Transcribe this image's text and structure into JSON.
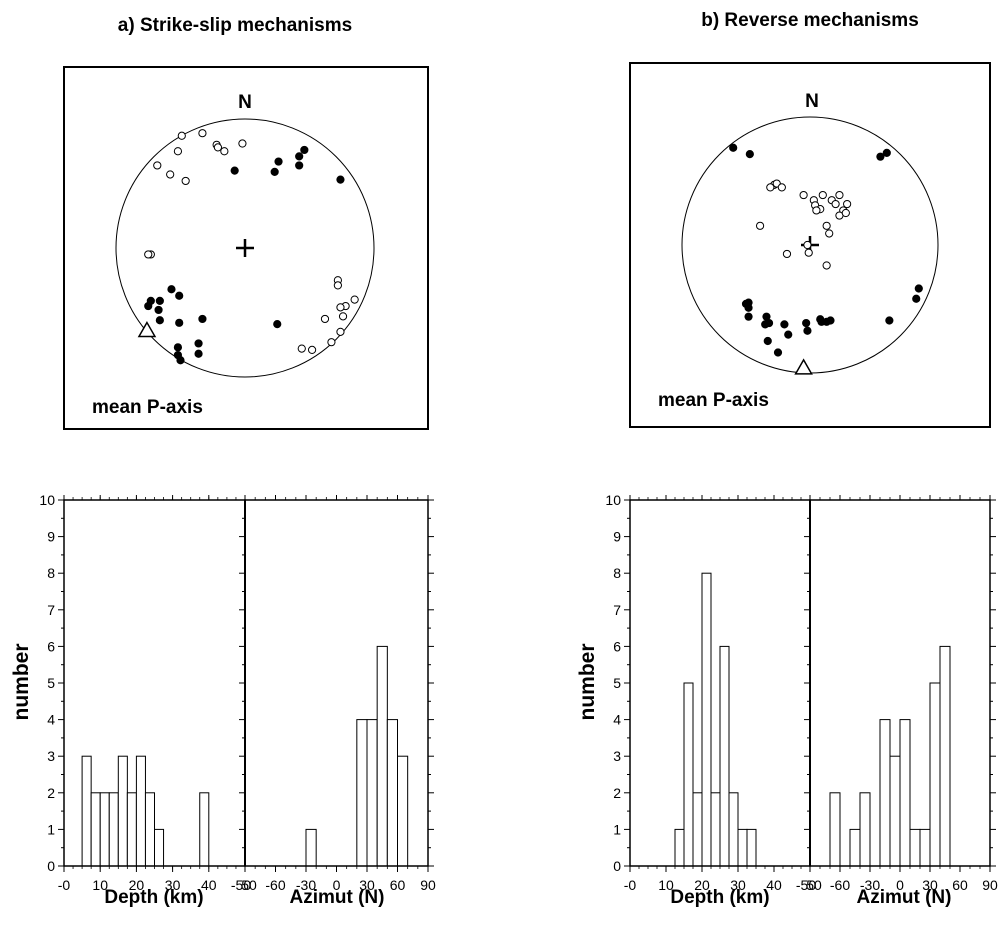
{
  "chart_data": [
    {
      "type": "scatter",
      "panel": "a",
      "title": "a) Strike-slip mechanisms",
      "north_label": "N",
      "mean_label": "mean P-axis",
      "projection": "stereonet",
      "series": [
        {
          "name": "",
          "symbol": "open-circle",
          "points": [
            [
              -0.49,
              0.87
            ],
            [
              -0.33,
              0.89
            ],
            [
              -0.22,
              0.8
            ],
            [
              -0.16,
              0.75
            ],
            [
              -0.21,
              0.78
            ],
            [
              -0.02,
              0.81
            ],
            [
              -0.52,
              0.75
            ],
            [
              -0.68,
              0.64
            ],
            [
              -0.58,
              0.57
            ],
            [
              -0.46,
              0.52
            ],
            [
              -0.73,
              -0.05
            ],
            [
              -0.75,
              -0.05
            ],
            [
              0.72,
              -0.25
            ],
            [
              0.72,
              -0.29
            ],
            [
              0.85,
              -0.4
            ],
            [
              0.78,
              -0.45
            ],
            [
              0.74,
              -0.46
            ],
            [
              0.62,
              -0.55
            ],
            [
              0.76,
              -0.53
            ],
            [
              0.74,
              -0.65
            ],
            [
              0.67,
              -0.73
            ],
            [
              0.52,
              -0.79
            ],
            [
              0.44,
              -0.78
            ]
          ]
        },
        {
          "name": "",
          "symbol": "filled-circle",
          "points": [
            [
              0.46,
              0.76
            ],
            [
              0.42,
              0.71
            ],
            [
              0.42,
              0.64
            ],
            [
              0.26,
              0.67
            ],
            [
              0.74,
              0.53
            ],
            [
              0.23,
              0.59
            ],
            [
              -0.08,
              0.6
            ],
            [
              -0.66,
              -0.41
            ],
            [
              -0.67,
              -0.48
            ],
            [
              -0.73,
              -0.41
            ],
            [
              -0.57,
              -0.32
            ],
            [
              -0.66,
              -0.56
            ],
            [
              -0.75,
              -0.45
            ],
            [
              -0.51,
              -0.37
            ],
            [
              -0.51,
              -0.58
            ],
            [
              -0.33,
              -0.55
            ],
            [
              -0.52,
              -0.77
            ],
            [
              -0.36,
              -0.74
            ],
            [
              -0.36,
              -0.82
            ],
            [
              -0.52,
              -0.83
            ],
            [
              -0.5,
              -0.87
            ],
            [
              0.25,
              -0.59
            ]
          ]
        }
      ],
      "mean_p_axis": [
        -0.76,
        -0.64
      ]
    },
    {
      "type": "scatter",
      "panel": "b",
      "title": "b) Reverse mechanisms",
      "north_label": "N",
      "mean_label": "mean P-axis",
      "projection": "stereonet",
      "series": [
        {
          "name": "",
          "symbol": "open-circle",
          "points": [
            [
              -0.28,
              0.47
            ],
            [
              -0.26,
              0.48
            ],
            [
              -0.22,
              0.45
            ],
            [
              -0.31,
              0.45
            ],
            [
              -0.05,
              0.39
            ],
            [
              0.1,
              0.39
            ],
            [
              0.03,
              0.35
            ],
            [
              0.04,
              0.31
            ],
            [
              0.17,
              0.35
            ],
            [
              0.23,
              0.39
            ],
            [
              0.2,
              0.32
            ],
            [
              0.29,
              0.32
            ],
            [
              0.26,
              0.27
            ],
            [
              0.08,
              0.28
            ],
            [
              0.05,
              0.27
            ],
            [
              0.23,
              0.23
            ],
            [
              0.28,
              0.25
            ],
            [
              0.13,
              0.15
            ],
            [
              0.15,
              0.09
            ],
            [
              -0.39,
              0.15
            ],
            [
              -0.01,
              -0.06
            ],
            [
              -0.18,
              -0.07
            ],
            [
              0.13,
              -0.16
            ],
            [
              -0.02,
              0.0
            ]
          ]
        },
        {
          "name": "",
          "symbol": "filled-circle",
          "points": [
            [
              -0.6,
              0.76
            ],
            [
              -0.47,
              0.71
            ],
            [
              0.55,
              0.69
            ],
            [
              0.6,
              0.72
            ],
            [
              -0.48,
              -0.45
            ],
            [
              -0.5,
              -0.46
            ],
            [
              -0.48,
              -0.49
            ],
            [
              -0.35,
              -0.62
            ],
            [
              -0.32,
              -0.61
            ],
            [
              -0.48,
              -0.56
            ],
            [
              -0.34,
              -0.56
            ],
            [
              -0.2,
              -0.62
            ],
            [
              -0.03,
              -0.61
            ],
            [
              0.08,
              -0.58
            ],
            [
              0.09,
              -0.6
            ],
            [
              0.13,
              -0.6
            ],
            [
              0.16,
              -0.59
            ],
            [
              0.62,
              -0.59
            ],
            [
              0.83,
              -0.42
            ],
            [
              0.85,
              -0.34
            ],
            [
              -0.25,
              -0.84
            ],
            [
              -0.33,
              -0.75
            ],
            [
              -0.17,
              -0.7
            ],
            [
              -0.02,
              -0.67
            ]
          ]
        }
      ],
      "mean_p_axis": [
        -0.05,
        -0.96
      ]
    },
    {
      "type": "bar",
      "panel": "a",
      "ylabel": "number",
      "ylim": [
        0,
        10
      ],
      "yticks": [
        "0",
        "1",
        "2",
        "3",
        "4",
        "5",
        "6",
        "7",
        "8",
        "9",
        "10"
      ],
      "depth": {
        "xlabel": "Depth (km)",
        "xlim": [
          0,
          50
        ],
        "xticks": [
          "-0",
          "10",
          "20",
          "30",
          "40",
          "50"
        ],
        "bin_width": 2.5,
        "bins": [
          [
            5,
            3
          ],
          [
            7.5,
            2
          ],
          [
            10,
            2
          ],
          [
            12.5,
            2
          ],
          [
            15,
            3
          ],
          [
            17.5,
            2
          ],
          [
            20,
            3
          ],
          [
            22.5,
            2
          ],
          [
            25,
            1
          ],
          [
            37.5,
            2
          ]
        ]
      },
      "azimuth": {
        "xlabel": "Azimut (N)",
        "xlim": [
          -90,
          90
        ],
        "xticks": [
          "-90",
          "-60",
          "-30",
          "0",
          "30",
          "60",
          "90"
        ],
        "tick_labels_printed": [
          "50",
          "-60",
          "-30",
          "0",
          "30",
          "60",
          "90"
        ],
        "bin_width": 10,
        "bins": [
          [
            -30,
            1
          ],
          [
            20,
            4
          ],
          [
            30,
            4
          ],
          [
            40,
            6
          ],
          [
            50,
            4
          ],
          [
            60,
            3
          ]
        ]
      }
    },
    {
      "type": "bar",
      "panel": "b",
      "ylabel": "number",
      "ylim": [
        0,
        10
      ],
      "yticks": [
        "0",
        "1",
        "2",
        "3",
        "4",
        "5",
        "6",
        "7",
        "8",
        "9",
        "10"
      ],
      "depth": {
        "xlabel": "Depth (km)",
        "xlim": [
          0,
          50
        ],
        "xticks": [
          "-0",
          "10",
          "20",
          "30",
          "40",
          "50"
        ],
        "bin_width": 2.5,
        "bins": [
          [
            12.5,
            1
          ],
          [
            15,
            5
          ],
          [
            17.5,
            2
          ],
          [
            20,
            8
          ],
          [
            22.5,
            2
          ],
          [
            25,
            6
          ],
          [
            27.5,
            2
          ],
          [
            30,
            1
          ],
          [
            32.5,
            1
          ]
        ]
      },
      "azimuth": {
        "xlabel": "Azimut (N)",
        "xlim": [
          -90,
          90
        ],
        "xticks": [
          "-90",
          "-60",
          "-30",
          "0",
          "30",
          "60",
          "90"
        ],
        "tick_labels_printed": [
          "50",
          "-60",
          "-30",
          "0",
          "30",
          "60",
          "90"
        ],
        "bin_width": 10,
        "bins": [
          [
            -70,
            2
          ],
          [
            -50,
            1
          ],
          [
            -40,
            2
          ],
          [
            -20,
            4
          ],
          [
            -10,
            3
          ],
          [
            0,
            4
          ],
          [
            10,
            1
          ],
          [
            20,
            1
          ],
          [
            30,
            5
          ],
          [
            40,
            6
          ]
        ]
      }
    }
  ]
}
